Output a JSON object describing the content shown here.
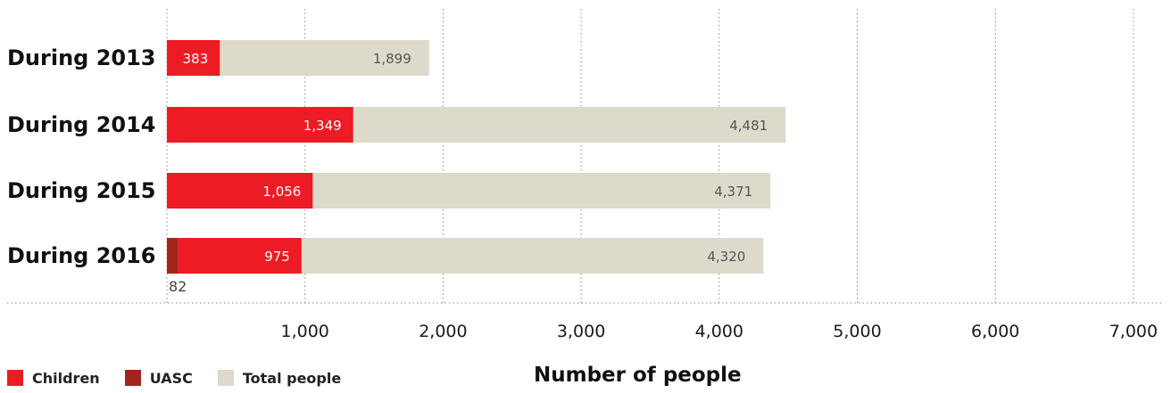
{
  "chart_data": {
    "type": "bar",
    "orientation": "horizontal",
    "stacked": true,
    "categories": [
      "During 2013",
      "During 2014",
      "During 2015",
      "During 2016"
    ],
    "series": [
      {
        "name": "UASC",
        "values": [
          0,
          0,
          0,
          82
        ],
        "labels": [
          "",
          "",
          "",
          "82"
        ]
      },
      {
        "name": "Children",
        "values": [
          383,
          1349,
          1056,
          975
        ],
        "labels": [
          "383",
          "1,349",
          "1,056",
          "975"
        ]
      },
      {
        "name": "Total people",
        "values": [
          1899,
          4481,
          4371,
          4320
        ],
        "labels": [
          "1,899",
          "4,481",
          "4,371",
          "4,320"
        ]
      }
    ],
    "xlabel": "Number of people",
    "xlim": [
      0,
      7000
    ],
    "xticks": [
      1000,
      2000,
      3000,
      4000,
      5000,
      6000,
      7000
    ],
    "xtick_labels": [
      "1,000",
      "2,000",
      "3,000",
      "4,000",
      "5,000",
      "6,000",
      "7,000"
    ],
    "grid": "vertical-dotted",
    "legend_position": "bottom-left",
    "colors": {
      "Children": "#ed1c24",
      "UASC": "#a3241b",
      "Total people": "#ddd9cb"
    }
  },
  "legend": {
    "items": [
      {
        "label": "Children",
        "color": "#ed1c24"
      },
      {
        "label": "UASC",
        "color": "#a3241b"
      },
      {
        "label": "Total people",
        "color": "#ddd9cb"
      }
    ]
  }
}
